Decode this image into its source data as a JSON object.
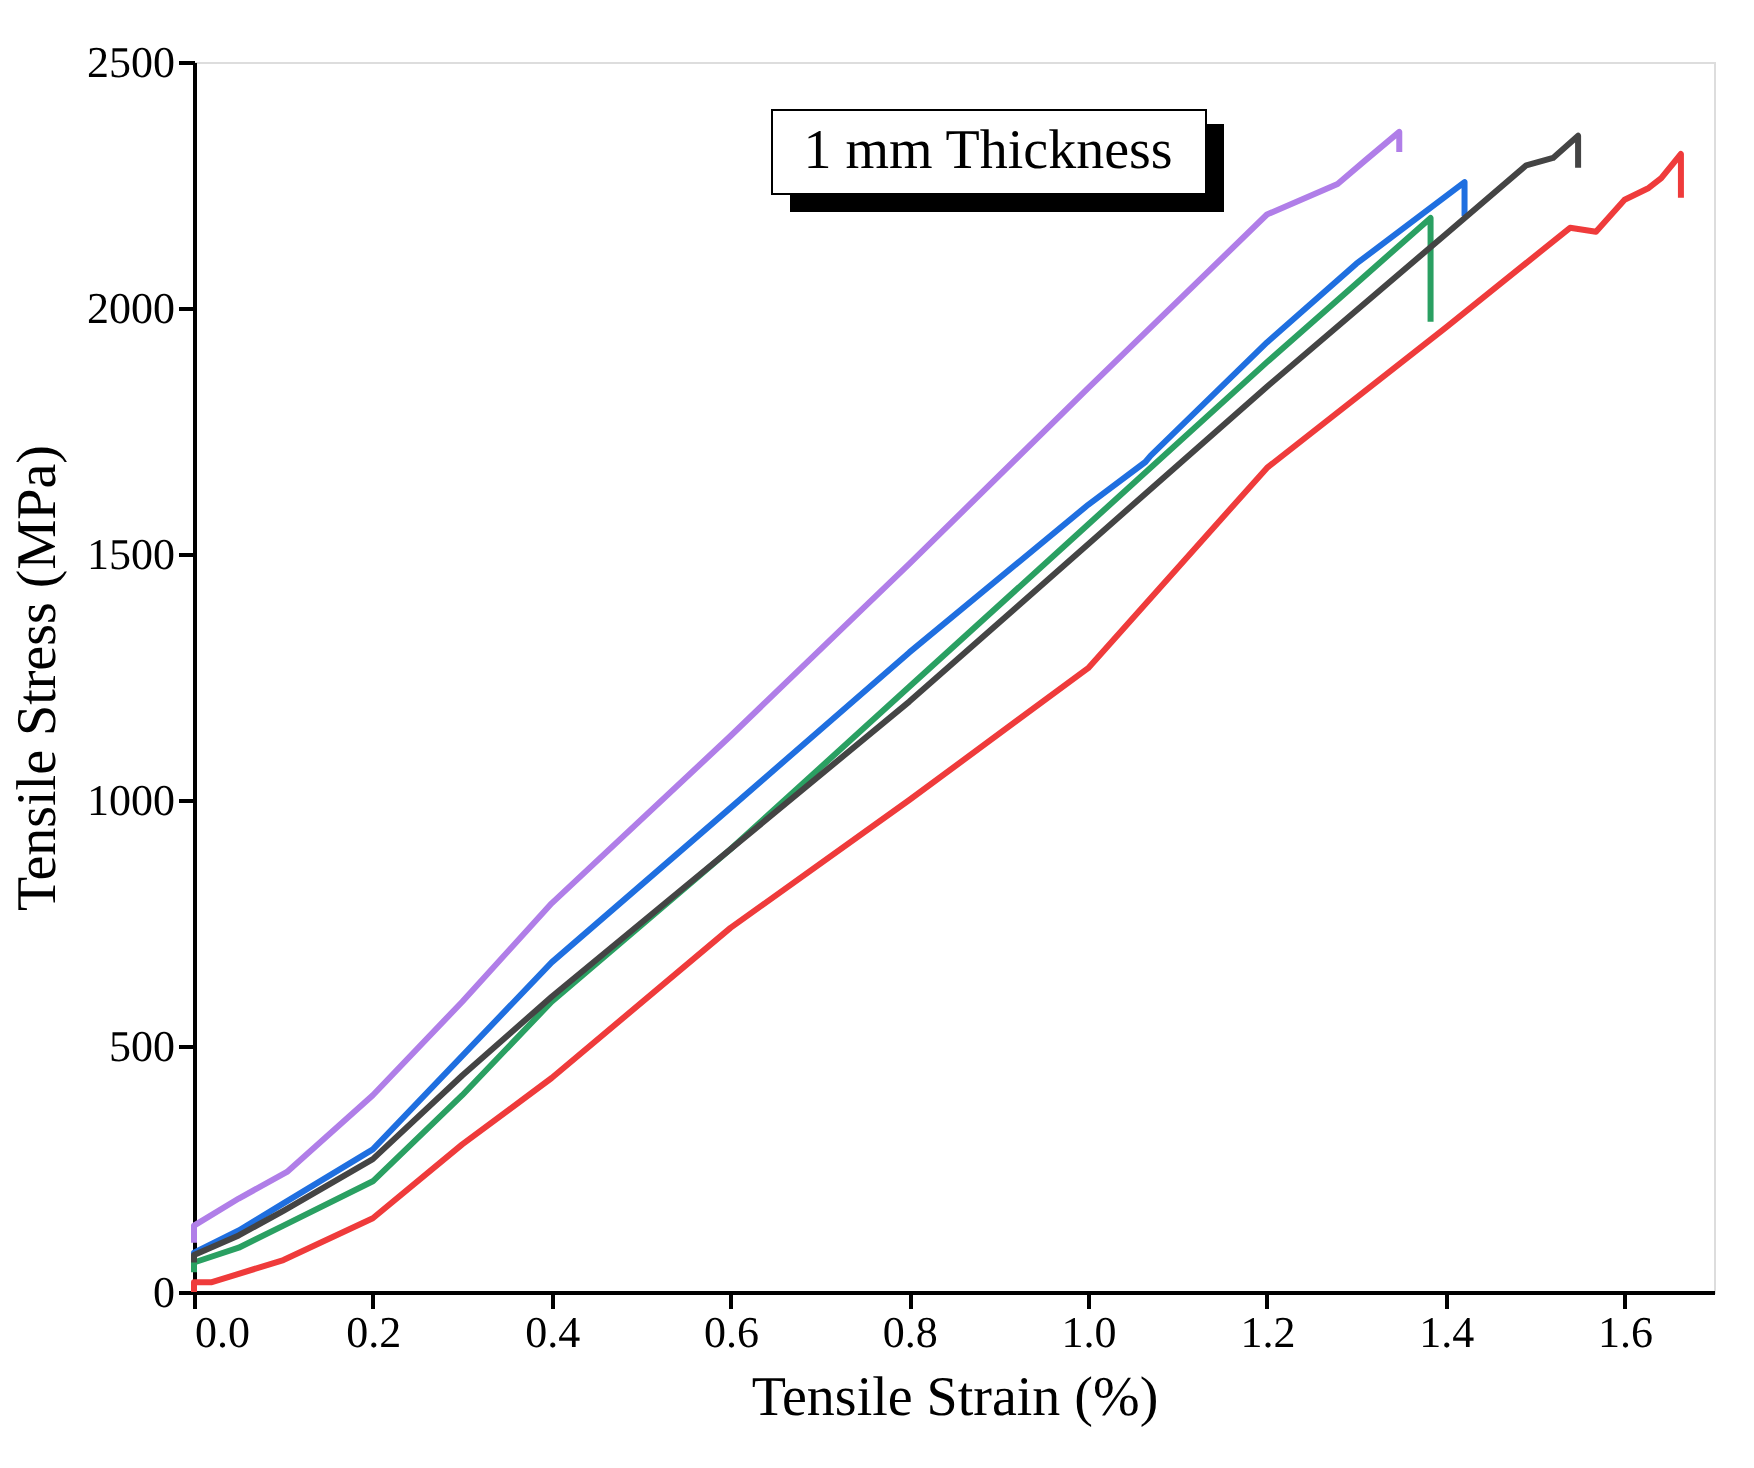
{
  "chart_data": {
    "type": "line",
    "xlabel": "Tensile Strain (%)",
    "ylabel": "Tensile Stress (MPa)",
    "xlim": [
      0,
      1.7
    ],
    "ylim": [
      0,
      2500
    ],
    "xticks": [
      {
        "value": 0,
        "label": "0.0"
      },
      0.2,
      0.4,
      0.6,
      0.8,
      {
        "value": 1,
        "label": "1.0"
      },
      1.2,
      1.4,
      1.6
    ],
    "yticks": [
      0,
      500,
      1000,
      1500,
      2000,
      2500
    ],
    "grid": false,
    "legend": false,
    "marker": "none",
    "line_style": "solid",
    "annotations": [
      "1 mm Thickness"
    ],
    "series": [
      {
        "color": "#b07ee8",
        "x": [
          0,
          0,
          0.05,
          0.104,
          0.2,
          0.3,
          0.4,
          0.6,
          0.8,
          1.0,
          1.2,
          1.279,
          1.31,
          1.348,
          1.348
        ],
        "values": [
          100,
          135,
          190,
          244,
          400,
          590,
          790,
          1130,
          1480,
          1837,
          2190,
          2252,
          2300,
          2358,
          2317
        ]
      },
      {
        "color": "#1f6fe0",
        "x": [
          0,
          0,
          0.05,
          0.1,
          0.2,
          0.3,
          0.4,
          0.6,
          0.8,
          1.0,
          1.064,
          1.07,
          1.2,
          1.3,
          1.421,
          1.421
        ],
        "values": [
          55,
          80,
          125,
          180,
          290,
          480,
          670,
          984,
          1300,
          1600,
          1687,
          1700,
          1930,
          2090,
          2256,
          2187
        ]
      },
      {
        "color": "#2aa062",
        "x": [
          0,
          0,
          0.05,
          0.1,
          0.2,
          0.3,
          0.4,
          0.6,
          0.8,
          1.0,
          1.2,
          1.3,
          1.383,
          1.383
        ],
        "values": [
          40,
          60,
          90,
          135,
          225,
          400,
          590,
          900,
          1230,
          1560,
          1890,
          2050,
          2183,
          1972
        ]
      },
      {
        "color": "#444444",
        "x": [
          0,
          0,
          0.05,
          0.1,
          0.2,
          0.3,
          0.4,
          0.6,
          0.8,
          1.0,
          1.2,
          1.4,
          1.49,
          1.52,
          1.548,
          1.548
        ],
        "values": [
          60,
          75,
          115,
          165,
          270,
          440,
          600,
          900,
          1200,
          1520,
          1840,
          2150,
          2290,
          2305,
          2350,
          2285
        ]
      },
      {
        "color": "#ef3b3b",
        "x": [
          0,
          0,
          0.02,
          0.1,
          0.2,
          0.3,
          0.4,
          0.6,
          0.8,
          1.0,
          1.2,
          1.4,
          1.539,
          1.568,
          1.6,
          1.627,
          1.641,
          1.663,
          1.663
        ],
        "values": [
          0,
          20,
          20,
          65,
          150,
          300,
          435,
          740,
          1000,
          1268,
          1675,
          1960,
          2163,
          2155,
          2220,
          2244,
          2264,
          2313,
          2224
        ]
      }
    ]
  }
}
